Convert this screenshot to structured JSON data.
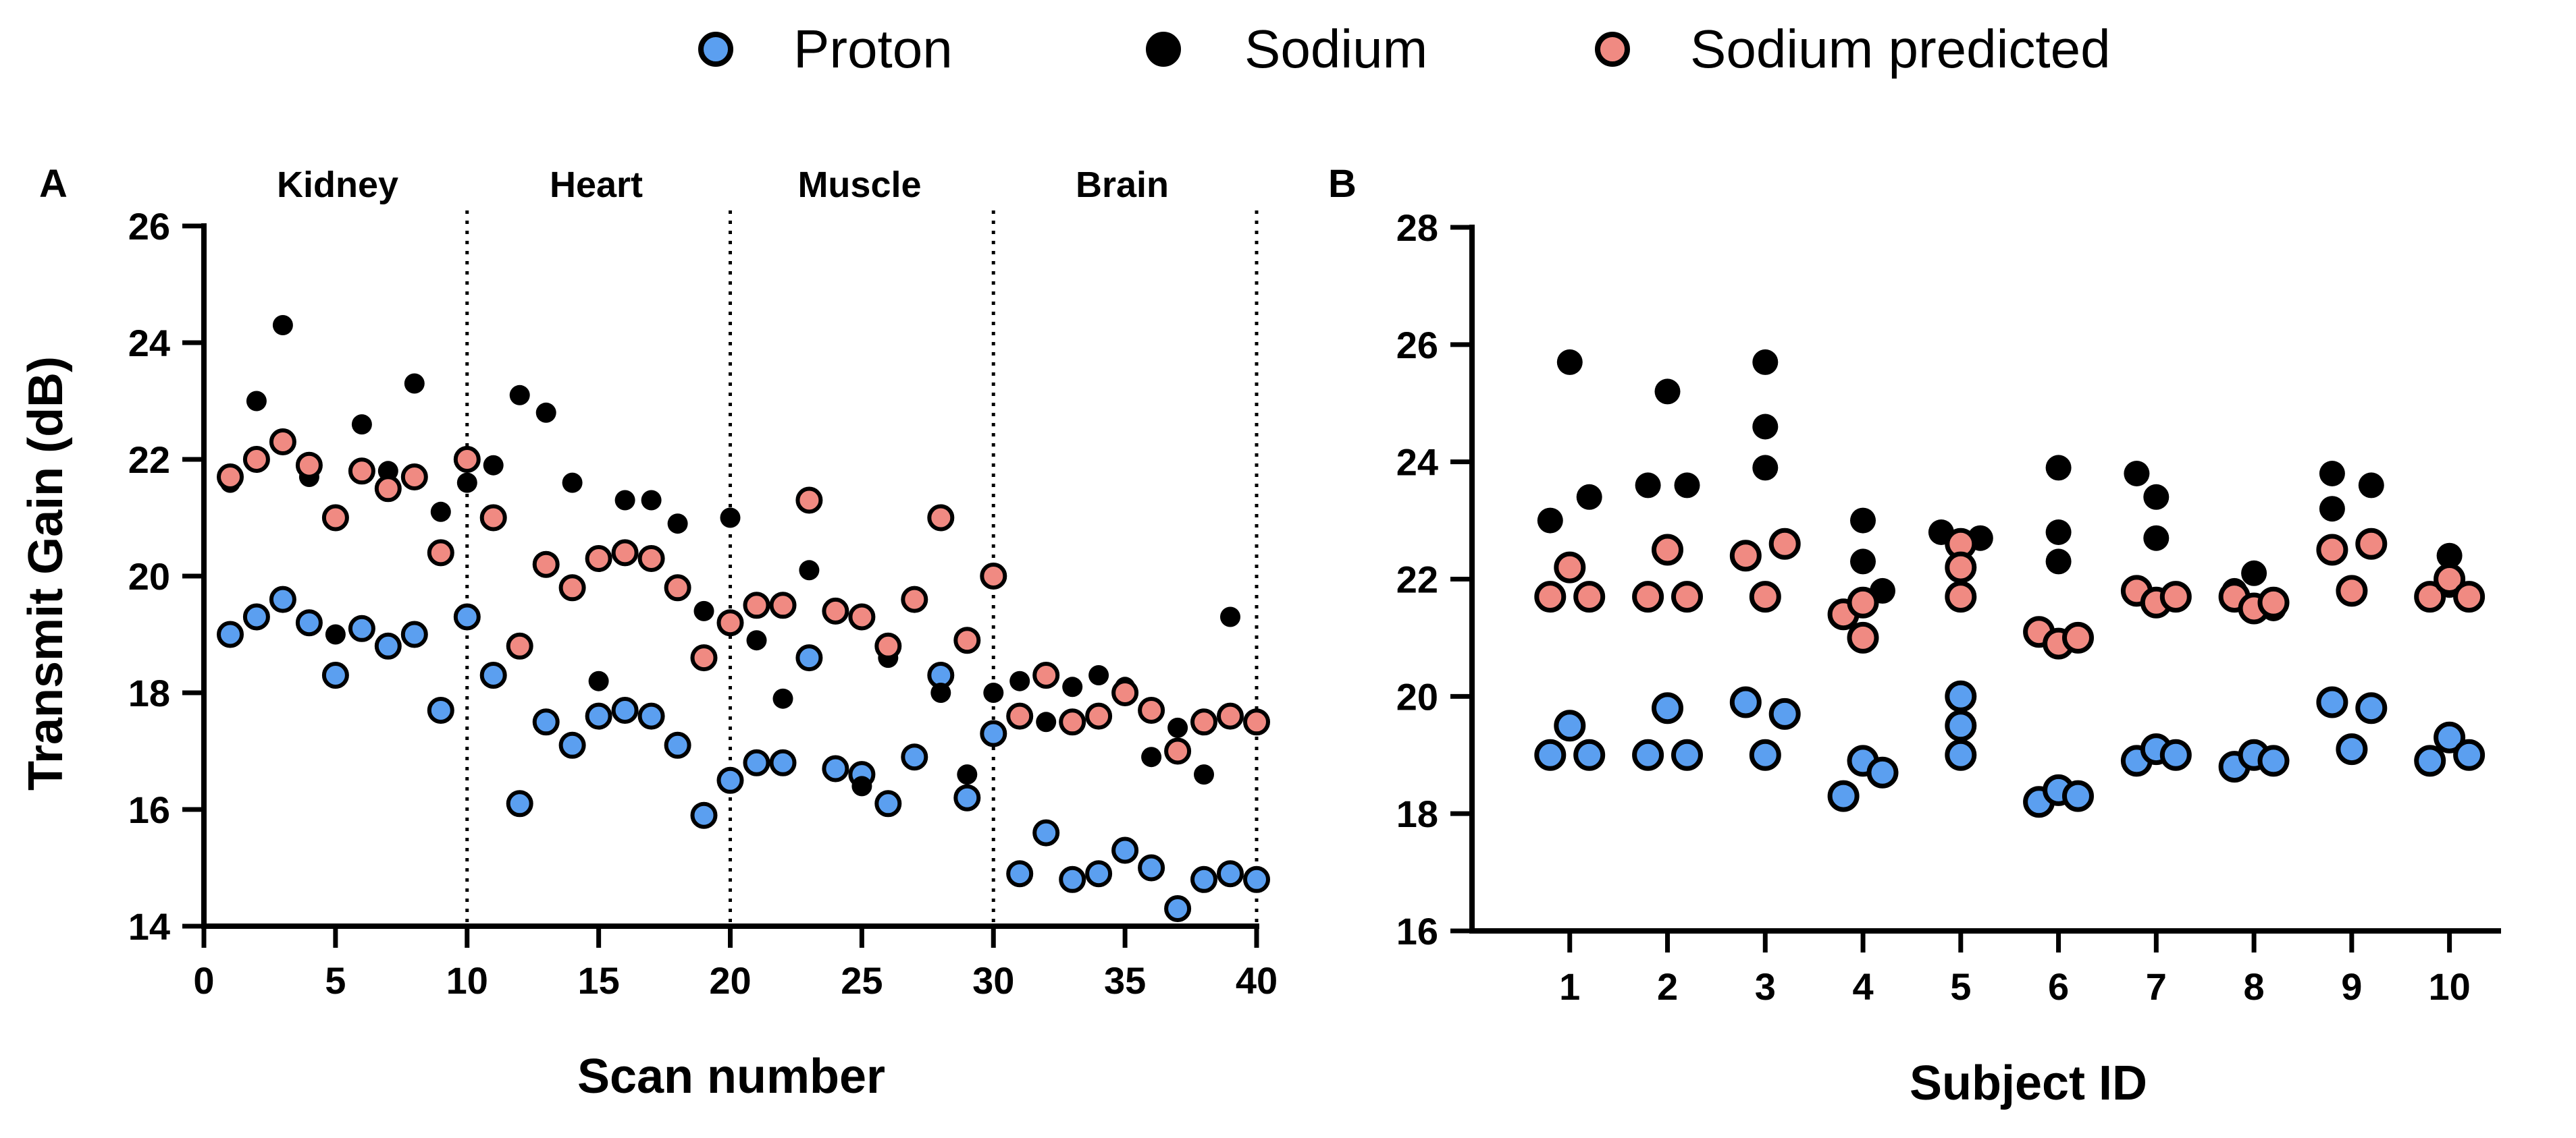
{
  "colors": {
    "proton": "#5b9ff0",
    "sodium": "#000000",
    "sodium_predicted": "#f08a82",
    "outline": "#000000"
  },
  "legend": {
    "items": [
      {
        "label": "Proton",
        "series": "proton"
      },
      {
        "label": "Sodium",
        "series": "sodium"
      },
      {
        "label": "Sodium predicted",
        "series": "sodium_predicted"
      }
    ]
  },
  "chart_data": [
    {
      "id": "A",
      "type": "scatter",
      "panel_label": "A",
      "xlabel": "Scan number",
      "ylabel": "Transmit Gain (dB)",
      "xlim": [
        0,
        40
      ],
      "ylim": [
        14,
        26
      ],
      "xticks": [
        0,
        5,
        10,
        15,
        20,
        25,
        30,
        35,
        40
      ],
      "yticks": [
        14,
        16,
        18,
        20,
        22,
        24,
        26
      ],
      "grid": false,
      "dividers": [
        10,
        20,
        30,
        40
      ],
      "regions": [
        {
          "label": "Kidney",
          "x": 5
        },
        {
          "label": "Heart",
          "x": 15
        },
        {
          "label": "Muscle",
          "x": 25
        },
        {
          "label": "Brain",
          "x": 35
        }
      ],
      "series": [
        {
          "name": "Proton",
          "key": "proton",
          "x": [
            1,
            2,
            3,
            4,
            5,
            6,
            7,
            8,
            9,
            10,
            11,
            12,
            13,
            14,
            15,
            16,
            17,
            18,
            19,
            20,
            21,
            22,
            23,
            24,
            25,
            26,
            27,
            28,
            29,
            30,
            31,
            32,
            33,
            34,
            35,
            36,
            37,
            38,
            39,
            40
          ],
          "y": [
            19.0,
            19.3,
            19.6,
            19.2,
            18.3,
            19.1,
            18.8,
            19.0,
            17.7,
            19.3,
            18.3,
            16.1,
            17.5,
            17.1,
            17.6,
            17.7,
            17.6,
            17.1,
            15.9,
            16.5,
            16.8,
            16.8,
            18.6,
            16.7,
            16.6,
            16.1,
            16.9,
            18.3,
            16.2,
            17.3,
            14.9,
            15.6,
            14.8,
            14.9,
            15.3,
            15.0,
            14.3,
            14.8,
            14.9,
            14.8
          ]
        },
        {
          "name": "Sodium",
          "key": "sodium",
          "x": [
            1,
            2,
            3,
            4,
            5,
            6,
            7,
            8,
            9,
            10,
            11,
            12,
            13,
            14,
            15,
            16,
            17,
            18,
            19,
            20,
            21,
            22,
            23,
            24,
            25,
            26,
            27,
            28,
            29,
            30,
            31,
            32,
            33,
            34,
            35,
            36,
            37,
            38,
            39,
            40
          ],
          "y": [
            21.6,
            23.0,
            24.3,
            21.7,
            19.0,
            22.6,
            21.8,
            23.3,
            21.1,
            21.6,
            21.9,
            23.1,
            22.8,
            21.6,
            18.2,
            21.3,
            21.3,
            20.9,
            19.4,
            21.0,
            18.9,
            17.9,
            20.1,
            19.4,
            16.4,
            18.6,
            19.6,
            18.0,
            16.6,
            18.0,
            18.2,
            17.5,
            18.1,
            18.3,
            18.1,
            16.9,
            17.4,
            16.6,
            19.3,
            17.5
          ]
        },
        {
          "name": "Sodium predicted",
          "key": "sodium_predicted",
          "x": [
            1,
            2,
            3,
            4,
            5,
            6,
            7,
            8,
            9,
            10,
            11,
            12,
            13,
            14,
            15,
            16,
            17,
            18,
            19,
            20,
            21,
            22,
            23,
            24,
            25,
            26,
            27,
            28,
            29,
            30,
            31,
            32,
            33,
            34,
            35,
            36,
            37,
            38,
            39,
            40
          ],
          "y": [
            21.7,
            22.0,
            22.3,
            21.9,
            21.0,
            21.8,
            21.5,
            21.7,
            20.4,
            22.0,
            21.0,
            18.8,
            20.2,
            19.8,
            20.3,
            20.4,
            20.3,
            19.8,
            18.6,
            19.2,
            19.5,
            19.5,
            21.3,
            19.4,
            19.3,
            18.8,
            19.6,
            21.0,
            18.9,
            20.0,
            17.6,
            18.3,
            17.5,
            17.6,
            18.0,
            17.7,
            17.0,
            17.5,
            17.6,
            17.5
          ]
        }
      ]
    },
    {
      "id": "B",
      "type": "scatter",
      "panel_label": "B",
      "xlabel": "Subject ID",
      "ylabel": "",
      "xlim": [
        0,
        10.5
      ],
      "ylim": [
        16,
        28
      ],
      "categories": [
        "1",
        "2",
        "3",
        "4",
        "5",
        "6",
        "7",
        "8",
        "9",
        "10"
      ],
      "yticks": [
        16,
        18,
        20,
        22,
        24,
        26,
        28
      ],
      "grid": false,
      "series": [
        {
          "name": "Proton",
          "key": "proton",
          "x": [
            0.8,
            1.0,
            1.2,
            1.8,
            2.0,
            2.2,
            2.8,
            3.0,
            3.2,
            3.8,
            4.0,
            4.2,
            5.0,
            5.0,
            5.0,
            5.8,
            6.0,
            6.2,
            6.8,
            7.0,
            7.2,
            7.8,
            8.0,
            8.2,
            8.8,
            9.0,
            9.2,
            9.8,
            10.0,
            10.2
          ],
          "y": [
            19.0,
            19.5,
            19.0,
            19.0,
            19.8,
            19.0,
            19.9,
            19.0,
            19.7,
            18.3,
            18.9,
            18.7,
            20.0,
            19.5,
            19.0,
            18.2,
            18.4,
            18.3,
            18.9,
            19.1,
            19.0,
            18.8,
            19.0,
            18.9,
            19.9,
            19.1,
            19.8,
            18.9,
            19.3,
            19.0
          ]
        },
        {
          "name": "Sodium",
          "key": "sodium",
          "x": [
            0.8,
            1.0,
            1.2,
            1.8,
            2.0,
            2.2,
            3.0,
            3.0,
            3.0,
            4.0,
            4.0,
            4.2,
            4.8,
            5.0,
            5.2,
            6.0,
            6.0,
            6.0,
            6.8,
            7.0,
            7.0,
            7.8,
            8.0,
            8.2,
            8.8,
            8.8,
            9.2,
            9.8,
            10.0,
            10.0
          ],
          "y": [
            23.0,
            25.7,
            23.4,
            23.6,
            25.2,
            23.6,
            25.7,
            24.6,
            23.9,
            23.0,
            22.3,
            21.8,
            22.8,
            22.6,
            22.7,
            23.9,
            22.8,
            22.3,
            23.8,
            23.4,
            22.7,
            21.8,
            22.1,
            21.5,
            23.8,
            23.2,
            23.6,
            21.7,
            22.4,
            21.9
          ]
        },
        {
          "name": "Sodium predicted",
          "key": "sodium_predicted",
          "x": [
            0.8,
            1.0,
            1.2,
            1.8,
            2.0,
            2.2,
            2.8,
            3.0,
            3.2,
            3.8,
            4.0,
            4.0,
            5.0,
            5.0,
            5.0,
            5.8,
            6.0,
            6.2,
            6.8,
            7.0,
            7.2,
            7.8,
            8.0,
            8.2,
            8.8,
            9.0,
            9.2,
            9.8,
            10.0,
            10.2
          ],
          "y": [
            21.7,
            22.2,
            21.7,
            21.7,
            22.5,
            21.7,
            22.4,
            21.7,
            22.6,
            21.4,
            21.6,
            21.0,
            22.6,
            22.2,
            21.7,
            21.1,
            20.9,
            21.0,
            21.8,
            21.6,
            21.7,
            21.7,
            21.5,
            21.6,
            22.5,
            21.8,
            22.6,
            21.7,
            22.0,
            21.7
          ]
        }
      ]
    }
  ]
}
